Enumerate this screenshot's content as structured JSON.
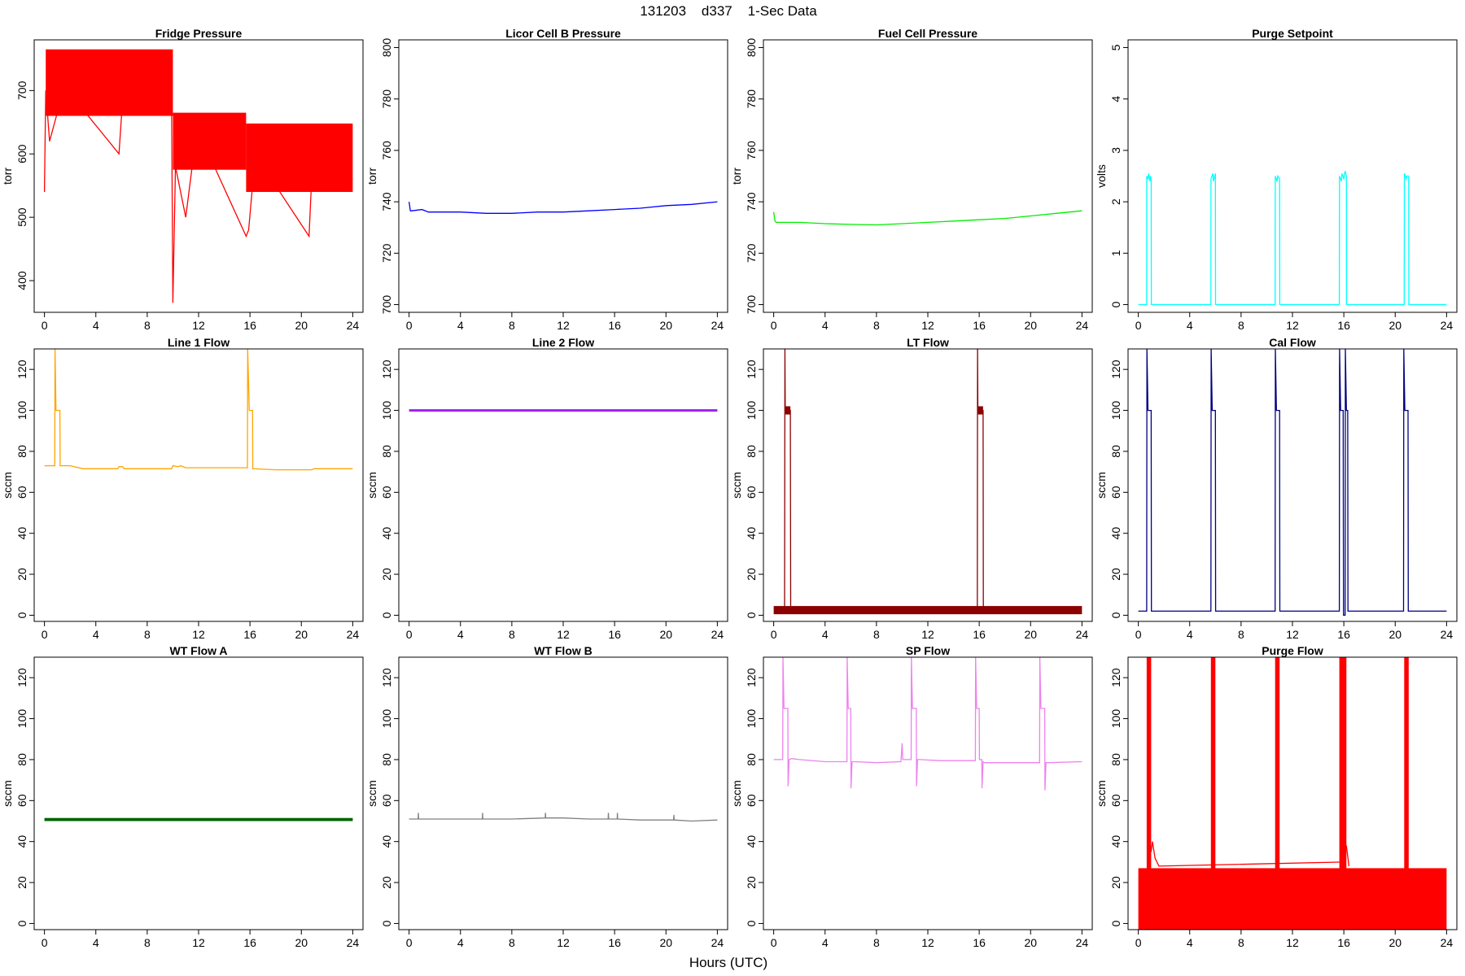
{
  "figure": {
    "title": "131203    d337    1-Sec Data",
    "xlabel": "Hours (UTC)"
  },
  "chart_data": [
    {
      "type": "line",
      "title": "Fridge Pressure",
      "ylabel": "torr",
      "color": "#ff0000",
      "ylim": [
        350,
        780
      ],
      "yticks": [
        400,
        500,
        600,
        700
      ],
      "xlim": [
        -0.8,
        24.8
      ],
      "xticks": [
        0,
        4,
        8,
        12,
        16,
        20,
        24
      ],
      "bands": [
        {
          "x": [
            0.1,
            10
          ],
          "y": [
            660,
            765
          ]
        },
        {
          "x": [
            10,
            15.7
          ],
          "y": [
            575,
            665
          ]
        },
        {
          "x": [
            15.7,
            24
          ],
          "y": [
            540,
            648
          ]
        }
      ],
      "series": [
        {
          "x": [
            0,
            0.1,
            0.4,
            1,
            3,
            5.8,
            6,
            6.3,
            9.9,
            10,
            10.2,
            11,
            11.5,
            13,
            15.7,
            15.9,
            16.2,
            18,
            20.6,
            20.8,
            21,
            23,
            24
          ],
          "y": [
            540,
            700,
            620,
            665,
            670,
            600,
            660,
            670,
            665,
            365,
            580,
            500,
            580,
            590,
            470,
            480,
            550,
            550,
            470,
            560,
            550,
            560,
            560
          ]
        }
      ]
    },
    {
      "type": "line",
      "title": "Licor Cell B Pressure",
      "ylabel": "torr",
      "color": "#0000ff",
      "ylim": [
        697,
        803
      ],
      "yticks": [
        700,
        720,
        740,
        760,
        780,
        800
      ],
      "xlim": [
        -0.8,
        24.8
      ],
      "xticks": [
        0,
        4,
        8,
        12,
        16,
        20,
        24
      ],
      "series": [
        {
          "x": [
            0,
            0.1,
            0.2,
            1,
            1.5,
            2,
            4,
            6,
            8,
            10,
            12,
            14,
            16,
            18,
            20,
            22,
            24
          ],
          "y": [
            740,
            736.5,
            736.5,
            737,
            736,
            736,
            736,
            735.5,
            735.5,
            736,
            736,
            736.5,
            737,
            737.5,
            738.5,
            739,
            740
          ]
        }
      ]
    },
    {
      "type": "line",
      "title": "Fuel Cell Pressure",
      "ylabel": "torr",
      "color": "#00ee00",
      "ylim": [
        697,
        803
      ],
      "yticks": [
        700,
        720,
        740,
        760,
        780,
        800
      ],
      "xlim": [
        -0.8,
        24.8
      ],
      "xticks": [
        0,
        4,
        8,
        12,
        16,
        20,
        24
      ],
      "series": [
        {
          "x": [
            0,
            0.1,
            0.2,
            2,
            4,
            6,
            8,
            10,
            12,
            14,
            16,
            18,
            20,
            22,
            24
          ],
          "y": [
            736,
            732.5,
            732,
            732,
            731.5,
            731.2,
            731,
            731.5,
            732,
            732.5,
            733,
            733.5,
            734.5,
            735.5,
            736.5
          ]
        }
      ]
    },
    {
      "type": "line",
      "title": "Purge Setpoint",
      "ylabel": "volts",
      "color": "#00ffff",
      "ylim": [
        -0.15,
        5.15
      ],
      "yticks": [
        0,
        1,
        2,
        3,
        4,
        5
      ],
      "xlim": [
        -0.8,
        24.8
      ],
      "xticks": [
        0,
        4,
        8,
        12,
        16,
        20,
        24
      ],
      "series": [
        {
          "x": [
            0,
            0.65,
            0.66,
            0.75,
            0.8,
            0.9,
            0.95,
            1.0,
            1.01,
            5.65,
            5.66,
            5.8,
            5.85,
            6.0,
            6.01,
            10.65,
            10.66,
            10.8,
            10.85,
            11.0,
            11.01,
            15.65,
            15.66,
            15.8,
            15.85,
            16.0,
            16.1,
            16.2,
            16.21,
            20.7,
            20.71,
            20.85,
            20.9,
            21.05,
            21.06,
            24
          ],
          "y": [
            0,
            0,
            2.5,
            2.45,
            2.55,
            2.4,
            2.5,
            2.45,
            0,
            0,
            2.45,
            2.55,
            2.4,
            2.55,
            0,
            0,
            2.5,
            2.4,
            2.5,
            2.45,
            0,
            0,
            2.5,
            2.4,
            2.55,
            2.45,
            2.6,
            2.5,
            0,
            0,
            2.55,
            2.45,
            2.5,
            2.5,
            0,
            0
          ]
        }
      ]
    },
    {
      "type": "line",
      "title": "Line 1 Flow",
      "ylabel": "sccm",
      "color": "#ffa500",
      "ylim": [
        -3,
        130
      ],
      "yticks": [
        0,
        20,
        40,
        60,
        80,
        100,
        120
      ],
      "xlim": [
        -0.8,
        24.8
      ],
      "xticks": [
        0,
        4,
        8,
        12,
        16,
        20,
        24
      ],
      "series": [
        {
          "x": [
            0,
            0.8,
            0.82,
            0.9,
            0.92,
            1.2,
            1.22,
            2,
            3,
            5.7,
            5.8,
            6.1,
            6.2,
            9.9,
            10,
            10.4,
            10.6,
            11,
            12,
            14,
            15.8,
            15.82,
            15.95,
            15.97,
            16.2,
            16.22,
            18,
            20.8,
            21,
            24
          ],
          "y": [
            73,
            73,
            130,
            100,
            100,
            100,
            73,
            73,
            71.5,
            71.5,
            72.5,
            72.5,
            71.5,
            71.5,
            73,
            72.5,
            73,
            72,
            72,
            72,
            72,
            130,
            100,
            100,
            100,
            71.5,
            71,
            71,
            71.5,
            71.5
          ]
        }
      ]
    },
    {
      "type": "line",
      "title": "Line 2 Flow",
      "ylabel": "sccm",
      "color": "#a020f0",
      "ylim": [
        -3,
        130
      ],
      "yticks": [
        0,
        20,
        40,
        60,
        80,
        100,
        120
      ],
      "xlim": [
        -0.8,
        24.8
      ],
      "xticks": [
        0,
        4,
        8,
        12,
        16,
        20,
        24
      ],
      "series": [
        {
          "x": [
            0,
            24
          ],
          "y": [
            100,
            100
          ]
        }
      ]
    },
    {
      "type": "line",
      "title": "LT Flow",
      "ylabel": "sccm",
      "color": "#8b0000",
      "ylim": [
        -3,
        130
      ],
      "yticks": [
        0,
        20,
        40,
        60,
        80,
        100,
        120
      ],
      "xlim": [
        -0.8,
        24.8
      ],
      "xticks": [
        0,
        4,
        8,
        12,
        16,
        20,
        24
      ],
      "bands": [
        {
          "x": [
            0,
            24
          ],
          "y": [
            0.5,
            4.5
          ]
        },
        {
          "x": [
            0.9,
            1.3
          ],
          "y": [
            98,
            102
          ]
        },
        {
          "x": [
            15.9,
            16.3
          ],
          "y": [
            98,
            102
          ]
        }
      ],
      "series": [
        {
          "x": [
            0.85,
            0.87,
            0.9,
            1.3,
            1.32,
            15.85,
            15.87,
            15.9,
            16.3,
            16.32
          ],
          "y": [
            2,
            130,
            100,
            100,
            2,
            2,
            130,
            100,
            100,
            2
          ]
        }
      ]
    },
    {
      "type": "line",
      "title": "Cal Flow",
      "ylabel": "sccm",
      "color": "#000080",
      "ylim": [
        -3,
        130
      ],
      "yticks": [
        0,
        20,
        40,
        60,
        80,
        100,
        120
      ],
      "xlim": [
        -0.8,
        24.8
      ],
      "xticks": [
        0,
        4,
        8,
        12,
        16,
        20,
        24
      ],
      "series": [
        {
          "x": [
            0,
            0.65,
            0.67,
            0.75,
            1.0,
            1.02,
            5.65,
            5.67,
            5.75,
            6.0,
            6.02,
            10.65,
            10.67,
            10.75,
            11.0,
            11.02,
            15.65,
            15.67,
            15.75,
            15.95,
            15.97,
            16.1,
            16.12,
            16.2,
            16.3,
            16.32,
            20.65,
            20.67,
            20.75,
            21.0,
            21.02,
            24
          ],
          "y": [
            2,
            2,
            130,
            100,
            100,
            2,
            2,
            130,
            100,
            100,
            2,
            2,
            130,
            100,
            100,
            2,
            2,
            130,
            100,
            100,
            0,
            0,
            130,
            100,
            100,
            2,
            2,
            130,
            100,
            100,
            2,
            2
          ]
        }
      ]
    },
    {
      "type": "line",
      "title": "WT Flow A",
      "ylabel": "sccm",
      "color": "#006400",
      "ylim": [
        -3,
        130
      ],
      "yticks": [
        0,
        20,
        40,
        60,
        80,
        100,
        120
      ],
      "xlim": [
        -0.8,
        24.8
      ],
      "xticks": [
        0,
        4,
        8,
        12,
        16,
        20,
        24
      ],
      "bands": [
        {
          "x": [
            0,
            24
          ],
          "y": [
            50,
            51.5
          ]
        }
      ],
      "series": [
        {
          "x": [
            0,
            24
          ],
          "y": [
            50.7,
            50.7
          ]
        }
      ]
    },
    {
      "type": "line",
      "title": "WT Flow B",
      "ylabel": "sccm",
      "color": "#808080",
      "ylim": [
        -3,
        130
      ],
      "yticks": [
        0,
        20,
        40,
        60,
        80,
        100,
        120
      ],
      "xlim": [
        -0.8,
        24.8
      ],
      "xticks": [
        0,
        4,
        8,
        12,
        16,
        20,
        24
      ],
      "series": [
        {
          "x": [
            0,
            0.7,
            0.72,
            0.74,
            4,
            5.7,
            5.72,
            5.74,
            8,
            10.6,
            10.62,
            10.64,
            12,
            14,
            15.5,
            15.52,
            15.54,
            16.2,
            16.22,
            16.24,
            18,
            20.6,
            20.62,
            20.64,
            22,
            24
          ],
          "y": [
            51,
            51,
            54,
            51,
            51,
            51,
            54,
            51,
            51,
            51.5,
            54,
            51.5,
            51.5,
            51,
            51,
            54,
            51,
            51,
            54,
            51,
            50.5,
            50.5,
            53,
            50.5,
            50,
            50.5
          ]
        }
      ]
    },
    {
      "type": "line",
      "title": "SP Flow",
      "ylabel": "sccm",
      "color": "#ee82ee",
      "ylim": [
        -3,
        130
      ],
      "yticks": [
        0,
        20,
        40,
        60,
        80,
        100,
        120
      ],
      "xlim": [
        -0.8,
        24.8
      ],
      "xticks": [
        0,
        4,
        8,
        12,
        16,
        20,
        24
      ],
      "series": [
        {
          "x": [
            0,
            0.7,
            0.72,
            0.8,
            1.1,
            1.12,
            1.2,
            1.4,
            2,
            4,
            5.7,
            5.72,
            5.8,
            6.0,
            6.02,
            6.1,
            6.3,
            8,
            9.9,
            10.0,
            10.05,
            10.2,
            10.7,
            10.72,
            10.8,
            11.1,
            11.12,
            11.2,
            11.4,
            13,
            15.7,
            15.72,
            15.8,
            16.0,
            16.02,
            16.1,
            16.2,
            16.22,
            16.3,
            16.4,
            18,
            20.7,
            20.72,
            20.8,
            21.1,
            21.12,
            21.2,
            21.4,
            24
          ],
          "y": [
            80,
            80,
            130,
            105,
            105,
            67,
            80,
            80.5,
            80,
            79,
            79,
            130,
            105,
            105,
            66,
            79,
            79,
            78.5,
            79,
            88,
            80,
            80,
            80,
            130,
            105,
            105,
            67,
            80,
            80,
            79.5,
            79.5,
            130,
            105,
            105,
            80,
            80,
            80,
            66,
            79,
            78.5,
            78.5,
            78.5,
            130,
            105,
            105,
            65,
            78.5,
            78.5,
            79
          ]
        }
      ]
    },
    {
      "type": "line",
      "title": "Purge Flow",
      "ylabel": "sccm",
      "color": "#ff0000",
      "ylim": [
        -3,
        130
      ],
      "yticks": [
        0,
        20,
        40,
        60,
        80,
        100,
        120
      ],
      "xlim": [
        -0.8,
        24.8
      ],
      "xticks": [
        0,
        4,
        8,
        12,
        16,
        20,
        24
      ],
      "bands": [
        {
          "x": [
            0,
            24
          ],
          "y": [
            -3,
            27
          ]
        },
        {
          "x": [
            0.65,
            1.0
          ],
          "y": [
            -3,
            130
          ]
        },
        {
          "x": [
            5.65,
            6.0
          ],
          "y": [
            -3,
            130
          ]
        },
        {
          "x": [
            10.65,
            11.0
          ],
          "y": [
            -3,
            130
          ]
        },
        {
          "x": [
            15.65,
            16.2
          ],
          "y": [
            -3,
            130
          ]
        },
        {
          "x": [
            20.7,
            21.05
          ],
          "y": [
            -3,
            130
          ]
        }
      ],
      "series": [
        {
          "x": [
            1.0,
            1.1,
            1.3,
            1.6,
            15.9,
            16.2,
            16.4
          ],
          "y": [
            35,
            40,
            32,
            28,
            30,
            38,
            28
          ]
        }
      ]
    }
  ]
}
